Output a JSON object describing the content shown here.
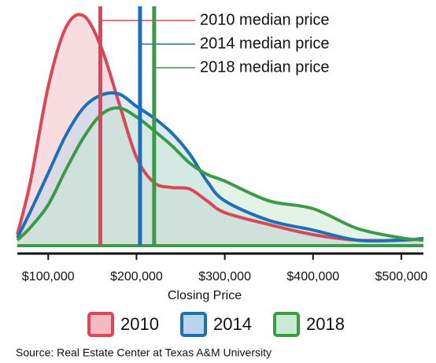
{
  "chart_data": {
    "type": "area",
    "x": [
      65000,
      80000,
      100000,
      120000,
      140000,
      160000,
      180000,
      200000,
      220000,
      240000,
      260000,
      280000,
      300000,
      350000,
      400000,
      450000,
      500000,
      525000
    ],
    "series": [
      {
        "name": "2010",
        "color": "#d9475a",
        "fill": "#f4b9c1",
        "median": 159000,
        "median_label": "2010 median price",
        "values": [
          4.8,
          28.1,
          69.2,
          94.9,
          100,
          86.3,
          62.3,
          38.4,
          27.4,
          25.3,
          24.7,
          19.5,
          14.4,
          9.2,
          4.8,
          2.4,
          2.4,
          3.1
        ]
      },
      {
        "name": "2014",
        "color": "#1f6fb5",
        "fill": "#b9d5ee",
        "median": 204000,
        "median_label": "2014 median price",
        "values": [
          3.4,
          15,
          31.5,
          48,
          60,
          65.5,
          66,
          60.6,
          55.5,
          49,
          40,
          28,
          19.5,
          11,
          6.8,
          2.4,
          2.4,
          3.1
        ]
      },
      {
        "name": "2018",
        "color": "#3a9a47",
        "fill": "#c8ead0",
        "median": 220000,
        "median_label": "2018 median price",
        "values": [
          2.4,
          8,
          17.8,
          33,
          47,
          57,
          59.9,
          56,
          50,
          43.5,
          36,
          31,
          28.1,
          19.5,
          16.1,
          7.5,
          3.4,
          2.4
        ]
      }
    ],
    "xlim": [
      65000,
      525000
    ],
    "ylim": [
      0,
      100
    ],
    "xticks": [
      {
        "value": 100000,
        "label": "$100,000"
      },
      {
        "value": 200000,
        "label": "$200,000"
      },
      {
        "value": 300000,
        "label": "$300,000"
      },
      {
        "value": 400000,
        "label": "$400,000"
      },
      {
        "value": 500000,
        "label": "$500,000"
      }
    ],
    "xlabel": "Closing Price",
    "source": "Source: Real Estate Center at Texas A&M University"
  }
}
